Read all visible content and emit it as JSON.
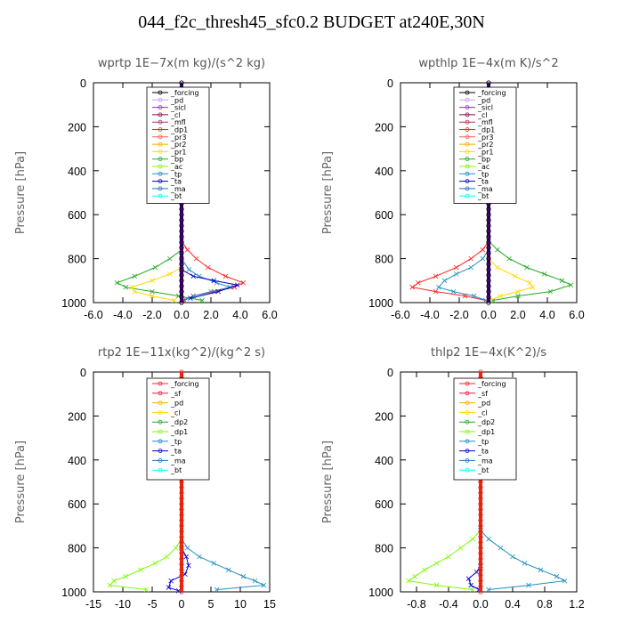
{
  "page": {
    "title": "044_f2c_thresh45_sfc0.2  BUDGET at240E,30N"
  },
  "chart_data": [
    {
      "type": "line",
      "title": "wprtp  1E−7x(m kg)/(s^2 kg)",
      "ylabel": "Pressure  [hPa]",
      "xlim": [
        -6.0,
        6.0
      ],
      "ylim": [
        1000,
        0
      ],
      "xticks": [
        -6.0,
        -4.0,
        -2.0,
        0.0,
        2.0,
        4.0,
        6.0
      ],
      "xtick_labels": [
        "-6.0",
        "-4.0",
        "-2.0",
        "0.0",
        "2.0",
        "4.0",
        "6.0"
      ],
      "yticks": [
        0,
        200,
        400,
        600,
        800,
        1000
      ],
      "ytick_labels": [
        "0",
        "200",
        "400",
        "600",
        "800",
        "1000"
      ],
      "legend": [
        "_forcing",
        "_pd",
        "_sicl",
        "_cl",
        "_mfl",
        "_dp1",
        "_pr3",
        "_pr2",
        "_pr1",
        "_bp",
        "_ac",
        "_tp",
        "_ta",
        "_ma",
        "_bt"
      ],
      "legend_colors": [
        "#000000",
        "#c8a0e8",
        "#8a2be2",
        "#8b0047",
        "#b03060",
        "#ff2020",
        "#ff5a5a",
        "#ffa500",
        "#ffd700",
        "#22aa22",
        "#7cfc00",
        "#1f8fbf",
        "#0000cd",
        "#1f6fbf",
        "#00ffff"
      ],
      "series": [
        {
          "name": "_dp1",
          "color": "#ff2020",
          "y": [
            720,
            760,
            800,
            840,
            880,
            910,
            930,
            950,
            970,
            990
          ],
          "x": [
            0.0,
            0.4,
            1.0,
            1.8,
            3.0,
            4.2,
            3.6,
            2.2,
            0.8,
            0.1
          ]
        },
        {
          "name": "_bp",
          "color": "#22aa22",
          "y": [
            760,
            800,
            840,
            880,
            910,
            930,
            950,
            970,
            990
          ],
          "x": [
            0.0,
            -0.8,
            -1.8,
            -3.2,
            -4.4,
            -3.8,
            -2.0,
            -0.2,
            1.4
          ]
        },
        {
          "name": "_pr1",
          "color": "#ffd700",
          "y": [
            840,
            870,
            900,
            930,
            950,
            970,
            990
          ],
          "x": [
            0.0,
            -0.8,
            -2.0,
            -3.4,
            -3.2,
            -2.0,
            -0.5
          ]
        },
        {
          "name": "_tp",
          "color": "#1f8fbf",
          "y": [
            800,
            850,
            880,
            910,
            930,
            950,
            970,
            990
          ],
          "x": [
            0.0,
            0.5,
            1.2,
            2.4,
            3.3,
            2.0,
            0.8,
            0.2
          ]
        },
        {
          "name": "_ta",
          "color": "#0000cd",
          "y": [
            850,
            880,
            900,
            920,
            950,
            980
          ],
          "x": [
            0.0,
            0.8,
            2.2,
            3.8,
            2.5,
            0.6
          ]
        }
      ]
    },
    {
      "type": "line",
      "title": "wpthlp  1E−4x(m K)/s^2",
      "ylabel": "Pressure  [hPa]",
      "xlim": [
        -6.0,
        6.0
      ],
      "ylim": [
        1000,
        0
      ],
      "xticks": [
        -6.0,
        -4.0,
        -2.0,
        0.0,
        2.0,
        4.0,
        6.0
      ],
      "xtick_labels": [
        "-6.0",
        "-4.0",
        "-2.0",
        "0.0",
        "2.0",
        "4.0",
        "6.0"
      ],
      "yticks": [
        0,
        200,
        400,
        600,
        800,
        1000
      ],
      "ytick_labels": [
        "0",
        "200",
        "400",
        "600",
        "800",
        "1000"
      ],
      "legend": [
        "_forcing",
        "_pd",
        "_sicl",
        "_cl",
        "_mfl",
        "_dp1",
        "_pr3",
        "_pr2",
        "_pr1",
        "_bp",
        "_ac",
        "_tp",
        "_ta",
        "_ma",
        "_bt"
      ],
      "legend_colors": [
        "#000000",
        "#c8a0e8",
        "#8a2be2",
        "#8b0047",
        "#b03060",
        "#ff2020",
        "#ff5a5a",
        "#ffa500",
        "#ffd700",
        "#22aa22",
        "#7cfc00",
        "#1f8fbf",
        "#0000cd",
        "#1f6fbf",
        "#00ffff"
      ],
      "series": [
        {
          "name": "_dp1",
          "color": "#ff2020",
          "y": [
            720,
            760,
            800,
            840,
            880,
            910,
            930,
            950,
            970,
            990
          ],
          "x": [
            0.0,
            -0.4,
            -1.2,
            -2.2,
            -3.6,
            -4.8,
            -5.2,
            -3.6,
            -1.6,
            -0.2
          ]
        },
        {
          "name": "_bp",
          "color": "#22aa22",
          "y": [
            720,
            760,
            800,
            840,
            870,
            900,
            920,
            950,
            970,
            990
          ],
          "x": [
            0.0,
            0.6,
            1.4,
            2.6,
            3.8,
            5.0,
            5.6,
            4.2,
            2.0,
            0.3
          ]
        },
        {
          "name": "_pr1",
          "color": "#ffd700",
          "y": [
            800,
            840,
            880,
            910,
            930,
            950,
            970,
            990
          ],
          "x": [
            0.0,
            0.6,
            1.8,
            2.8,
            3.0,
            2.0,
            0.8,
            0.1
          ]
        },
        {
          "name": "_tp",
          "color": "#1f8fbf",
          "y": [
            760,
            800,
            840,
            870,
            900,
            930,
            950,
            970,
            990
          ],
          "x": [
            0.0,
            -0.4,
            -1.2,
            -2.2,
            -3.0,
            -3.4,
            -2.4,
            -1.0,
            -0.2
          ]
        }
      ]
    },
    {
      "type": "line",
      "title": "rtp2  1E−11x(kg^2)/(kg^2 s)",
      "ylabel": "Pressure  [hPa]",
      "xlim": [
        -15,
        15
      ],
      "ylim": [
        1000,
        0
      ],
      "xticks": [
        -15,
        -10,
        -5,
        0,
        5,
        10,
        15
      ],
      "xtick_labels": [
        "-15",
        "-10",
        "-5",
        "0",
        "5",
        "10",
        "15"
      ],
      "yticks": [
        0,
        200,
        400,
        600,
        800,
        1000
      ],
      "ytick_labels": [
        "0",
        "200",
        "400",
        "600",
        "800",
        "1000"
      ],
      "legend": [
        "_forcing",
        "_sf",
        "_pd",
        "_cl",
        "_dp2",
        "_dp1",
        "_tp",
        "_ta",
        "_ma",
        "_bt"
      ],
      "legend_colors": [
        "#ff2020",
        "#e0204a",
        "#ffa500",
        "#ffd700",
        "#22aa22",
        "#7cfc00",
        "#1f8fbf",
        "#0000cd",
        "#1f6fbf",
        "#00ffff"
      ],
      "series": [
        {
          "name": "_dp1",
          "color": "#7cfc00",
          "y": [
            760,
            800,
            840,
            870,
            900,
            930,
            950,
            970,
            990
          ],
          "x": [
            0.0,
            -1.0,
            -2.5,
            -4.5,
            -7.0,
            -9.5,
            -11.5,
            -12.2,
            -6.0
          ]
        },
        {
          "name": "_tp",
          "color": "#1f8fbf",
          "y": [
            760,
            800,
            840,
            870,
            900,
            930,
            950,
            970,
            990
          ],
          "x": [
            0.0,
            1.0,
            3.0,
            5.5,
            8.0,
            10.5,
            12.5,
            14.0,
            6.0
          ]
        },
        {
          "name": "_ta",
          "color": "#0000cd",
          "y": [
            800,
            840,
            880,
            920,
            950,
            980,
            995
          ],
          "x": [
            0.0,
            0.8,
            1.2,
            0.6,
            -1.8,
            -2.2,
            -0.5
          ]
        }
      ]
    },
    {
      "type": "line",
      "title": "thlp2  1E−4x(K^2)/s",
      "ylabel": "Pressure  [hPa]",
      "xlim": [
        -1.0,
        1.2
      ],
      "ylim": [
        1000,
        0
      ],
      "xticks": [
        -0.8,
        -0.4,
        0.0,
        0.4,
        0.8,
        1.2
      ],
      "xtick_labels": [
        "-0.8",
        "-0.4",
        "0.0",
        "0.4",
        "0.8",
        "1.2"
      ],
      "yticks": [
        0,
        200,
        400,
        600,
        800,
        1000
      ],
      "ytick_labels": [
        "0",
        "200",
        "400",
        "600",
        "800",
        "1000"
      ],
      "legend": [
        "_forcing",
        "_sf",
        "_pd",
        "_cl",
        "_dp2",
        "_dp1",
        "_tp",
        "_ta",
        "_ma",
        "_bt"
      ],
      "legend_colors": [
        "#ff2020",
        "#e0204a",
        "#ffa500",
        "#ffd700",
        "#22aa22",
        "#7cfc00",
        "#1f8fbf",
        "#0000cd",
        "#1f6fbf",
        "#00ffff"
      ],
      "series": [
        {
          "name": "_dp1",
          "color": "#7cfc00",
          "y": [
            720,
            760,
            800,
            840,
            870,
            900,
            930,
            950,
            970,
            990
          ],
          "x": [
            0.0,
            -0.1,
            -0.25,
            -0.4,
            -0.55,
            -0.7,
            -0.82,
            -0.9,
            -0.55,
            -0.1
          ]
        },
        {
          "name": "_tp",
          "color": "#1f8fbf",
          "y": [
            720,
            760,
            800,
            840,
            870,
            900,
            930,
            950,
            970,
            990
          ],
          "x": [
            0.0,
            0.1,
            0.25,
            0.4,
            0.55,
            0.75,
            0.95,
            1.05,
            0.6,
            0.1
          ]
        },
        {
          "name": "_ta",
          "color": "#0000cd",
          "y": [
            880,
            910,
            940,
            970,
            990
          ],
          "x": [
            0.0,
            -0.05,
            -0.15,
            -0.12,
            -0.02
          ]
        }
      ]
    }
  ]
}
